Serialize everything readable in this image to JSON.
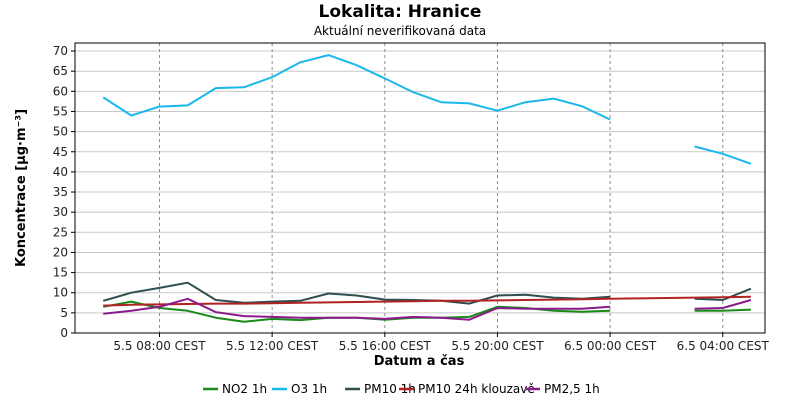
{
  "chart_data": {
    "type": "line",
    "title": "Lokalita: Hranice",
    "subtitle": "Aktuální neverifikovaná data",
    "xlabel": "Datum a čas",
    "ylabel": "Koncentrace [µg·m⁻³]",
    "ylim": [
      0,
      72
    ],
    "yticks": [
      0,
      5,
      10,
      15,
      20,
      25,
      30,
      35,
      40,
      45,
      50,
      55,
      60,
      65,
      70
    ],
    "xlim": [
      "2024-05-05T05:00",
      "2024-05-06T05:30"
    ],
    "xtick_positions": [
      "2024-05-05T08:00",
      "2024-05-05T12:00",
      "2024-05-05T16:00",
      "2024-05-05T20:00",
      "2024-05-06T00:00",
      "2024-05-06T04:00"
    ],
    "xtick_labels": [
      "5.5 08:00 CEST",
      "5.5 12:00 CEST",
      "5.5 16:00 CEST",
      "5.5 20:00 CEST",
      "6.5 00:00 CEST",
      "6.5 04:00 CEST"
    ],
    "grid": true,
    "legend_position": "bottom",
    "x": [
      "2024-05-05T06:00",
      "2024-05-05T07:00",
      "2024-05-05T08:00",
      "2024-05-05T09:00",
      "2024-05-05T10:00",
      "2024-05-05T11:00",
      "2024-05-05T12:00",
      "2024-05-05T13:00",
      "2024-05-05T14:00",
      "2024-05-05T15:00",
      "2024-05-05T16:00",
      "2024-05-05T17:00",
      "2024-05-05T18:00",
      "2024-05-05T19:00",
      "2024-05-05T20:00",
      "2024-05-05T21:00",
      "2024-05-05T22:00",
      "2024-05-05T23:00",
      "2024-05-06T00:00",
      "2024-05-06T01:00",
      "2024-05-06T02:00",
      "2024-05-06T03:00",
      "2024-05-06T04:00",
      "2024-05-06T05:00"
    ],
    "series": [
      {
        "name": "NO2 1h",
        "color": "#1a8a1a",
        "values": [
          6.5,
          7.8,
          6.2,
          5.5,
          3.8,
          2.8,
          3.5,
          3.2,
          3.8,
          3.8,
          3.3,
          3.8,
          3.8,
          4.0,
          6.5,
          6.2,
          5.5,
          5.3,
          5.5,
          null,
          null,
          5.5,
          5.5,
          5.8
        ]
      },
      {
        "name": "O3 1h",
        "color": "#1ab8ec",
        "values": [
          58.5,
          54.0,
          56.2,
          56.5,
          60.8,
          61.0,
          63.5,
          67.2,
          69.0,
          66.5,
          63.2,
          59.8,
          57.3,
          57.0,
          55.2,
          57.3,
          58.2,
          56.3,
          53.0,
          null,
          null,
          46.3,
          44.5,
          42.0
        ]
      },
      {
        "name": "PM10 1h",
        "color": "#2f4f4f",
        "values": [
          8.0,
          10.0,
          11.2,
          12.5,
          8.2,
          7.5,
          7.8,
          8.0,
          9.8,
          9.3,
          8.3,
          8.2,
          8.0,
          7.3,
          9.3,
          9.5,
          8.8,
          8.5,
          9.0,
          null,
          null,
          8.5,
          8.2,
          11.0
        ]
      },
      {
        "name": "PM10 24h klouzavě",
        "color": "#b22222",
        "values": [
          6.8,
          7.0,
          7.1,
          7.2,
          7.3,
          7.3,
          7.4,
          7.5,
          7.6,
          7.7,
          7.8,
          7.9,
          8.0,
          8.0,
          8.1,
          8.2,
          8.3,
          8.4,
          8.5,
          8.6,
          8.7,
          8.8,
          8.9,
          9.0
        ]
      },
      {
        "name": "PM2,5 1h",
        "color": "#8b1a8b",
        "values": [
          4.8,
          5.5,
          6.5,
          8.5,
          5.2,
          4.2,
          4.0,
          3.8,
          3.8,
          3.8,
          3.5,
          4.0,
          3.8,
          3.3,
          6.2,
          6.0,
          6.0,
          6.0,
          6.5,
          null,
          null,
          6.0,
          6.2,
          8.2
        ]
      }
    ]
  }
}
